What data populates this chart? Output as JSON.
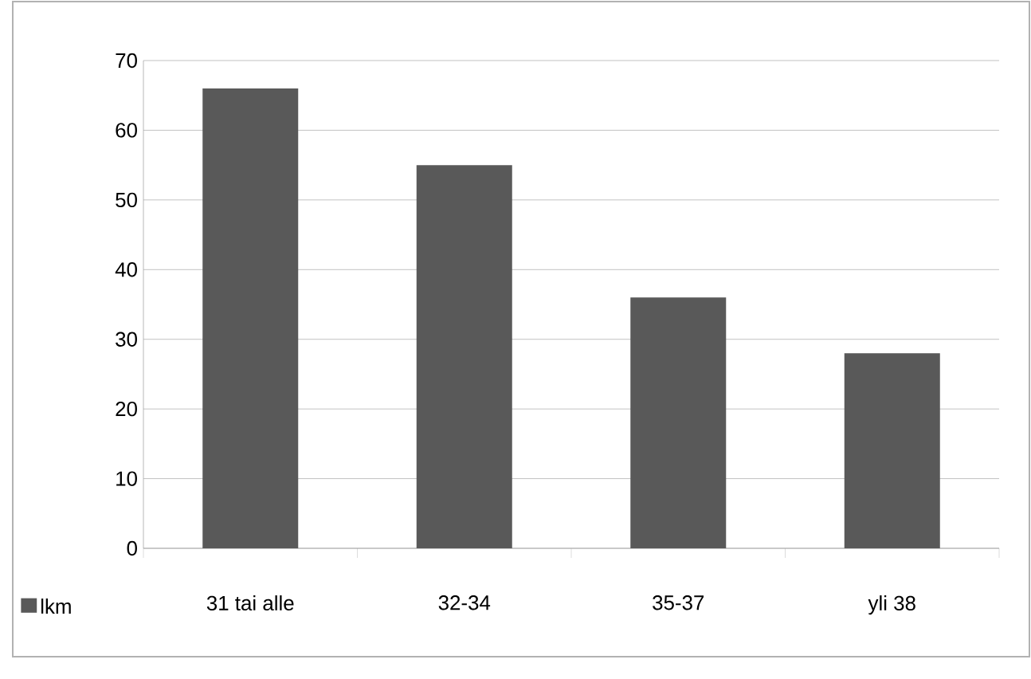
{
  "chart_data": {
    "type": "bar",
    "categories": [
      "31 tai alle",
      "32-34",
      "35-37",
      "yli 38"
    ],
    "series": [
      {
        "name": "lkm",
        "color": "#595959",
        "values": [
          66,
          55,
          36,
          28
        ]
      }
    ],
    "ylim": [
      0,
      70
    ],
    "yticks": [
      0,
      10,
      20,
      30,
      40,
      50,
      60,
      70
    ],
    "grid": "y",
    "legend": "bottom left"
  }
}
